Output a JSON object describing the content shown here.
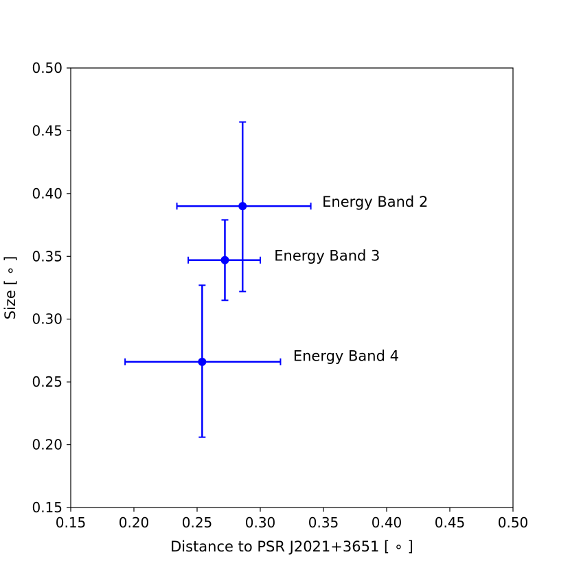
{
  "chart_data": {
    "type": "scatter",
    "title": "",
    "xlabel": "Distance to PSR J2021+3651 [$^\\circ$]",
    "xlabel_display": "Distance to PSR J2021+3651 [ ∘ ]",
    "ylabel_display": "Size [ ∘ ]",
    "xlim": [
      0.15,
      0.5
    ],
    "ylim": [
      0.15,
      0.5
    ],
    "xticks": [
      "0.15",
      "0.20",
      "0.25",
      "0.30",
      "0.35",
      "0.40",
      "0.45",
      "0.50"
    ],
    "yticks": [
      "0.15",
      "0.20",
      "0.25",
      "0.30",
      "0.35",
      "0.40",
      "0.45",
      "0.50"
    ],
    "grid": false,
    "color": "#0000ff",
    "points": [
      {
        "label": "Energy Band 2",
        "x": 0.286,
        "y": 0.39,
        "xerr": [
          0.234,
          0.34
        ],
        "yerr": [
          0.322,
          0.457
        ],
        "label_x": 0.349,
        "label_y": 0.394
      },
      {
        "label": "Energy Band 3",
        "x": 0.272,
        "y": 0.347,
        "xerr": [
          0.243,
          0.3
        ],
        "yerr": [
          0.315,
          0.379
        ],
        "label_x": 0.311,
        "label_y": 0.351
      },
      {
        "label": "Energy Band 4",
        "x": 0.254,
        "y": 0.266,
        "xerr": [
          0.193,
          0.316
        ],
        "yerr": [
          0.206,
          0.327
        ],
        "label_x": 0.326,
        "label_y": 0.271
      }
    ]
  }
}
